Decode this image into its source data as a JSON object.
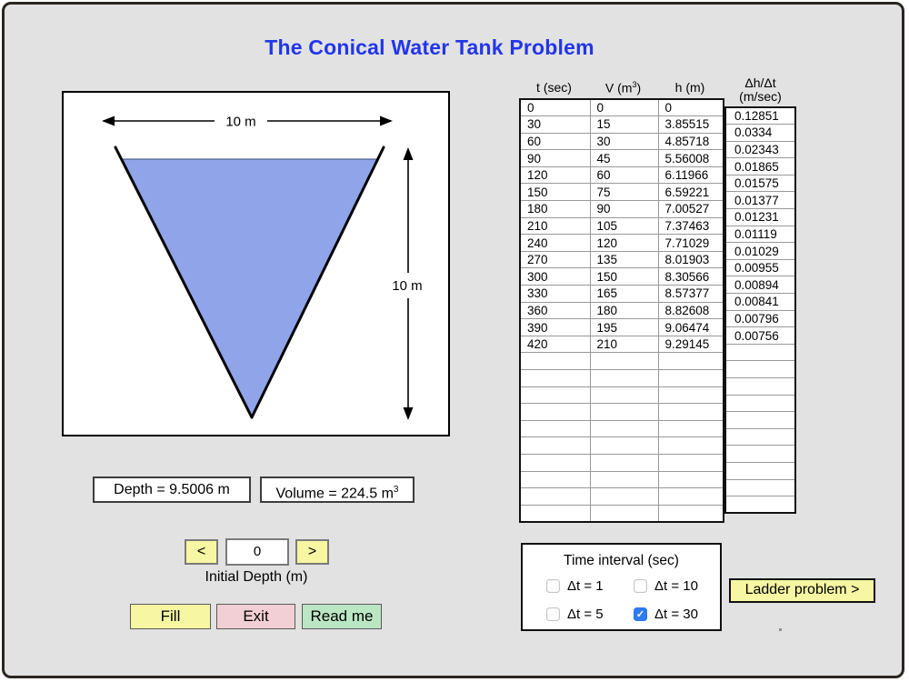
{
  "window": {
    "title": "The Conical Water Tank Problem"
  },
  "diagram": {
    "width_label": "10 m",
    "height_label": "10 m",
    "water_color": "#90a4e9"
  },
  "readouts": {
    "depth": "Depth = 9.5006 m",
    "volume_prefix": "Volume = 224.5 m",
    "volume_sup": "3"
  },
  "stepper": {
    "decrement_label": "<",
    "value": "0",
    "increment_label": ">",
    "label": "Initial Depth (m)"
  },
  "buttons": {
    "fill": "Fill",
    "exit": "Exit",
    "read_me": "Read me",
    "ladder": "Ladder problem >"
  },
  "time_interval": {
    "title": "Time interval (sec)",
    "options": [
      {
        "label": "Δt = 1",
        "checked": false
      },
      {
        "label": "Δt = 10",
        "checked": false
      },
      {
        "label": "Δt = 5",
        "checked": false
      },
      {
        "label": "Δt = 30",
        "checked": true
      }
    ]
  },
  "table": {
    "headers": {
      "t": "t (sec)",
      "v_prefix": "V (m",
      "v_sup": "3",
      "v_suffix": ")",
      "h": "h (m)",
      "rate_line1": "Δh/Δt",
      "rate_line2": "(m/sec)"
    },
    "rows": [
      {
        "t": "0",
        "v": "0",
        "h": "0"
      },
      {
        "t": "30",
        "v": "15",
        "h": "3.85515"
      },
      {
        "t": "60",
        "v": "30",
        "h": "4.85718"
      },
      {
        "t": "90",
        "v": "45",
        "h": "5.56008"
      },
      {
        "t": "120",
        "v": "60",
        "h": "6.11966"
      },
      {
        "t": "150",
        "v": "75",
        "h": "6.59221"
      },
      {
        "t": "180",
        "v": "90",
        "h": "7.00527"
      },
      {
        "t": "210",
        "v": "105",
        "h": "7.37463"
      },
      {
        "t": "240",
        "v": "120",
        "h": "7.71029"
      },
      {
        "t": "270",
        "v": "135",
        "h": "8.01903"
      },
      {
        "t": "300",
        "v": "150",
        "h": "8.30566"
      },
      {
        "t": "330",
        "v": "165",
        "h": "8.57377"
      },
      {
        "t": "360",
        "v": "180",
        "h": "8.82608"
      },
      {
        "t": "390",
        "v": "195",
        "h": "9.06474"
      },
      {
        "t": "420",
        "v": "210",
        "h": "9.29145"
      }
    ],
    "empty_rows": 10,
    "rates": [
      "0.12851",
      "0.0334",
      "0.02343",
      "0.01865",
      "0.01575",
      "0.01377",
      "0.01231",
      "0.01119",
      "0.01029",
      "0.00955",
      "0.00894",
      "0.00841",
      "0.00796",
      "0.00756"
    ],
    "rate_empty_rows": 10
  },
  "colors": {
    "title_blue": "#2236e8",
    "water_blue": "#90a4e9",
    "button_yellow": "#f6f6a3",
    "button_pink": "#f2cfd4",
    "button_green": "#bbe6c3",
    "checkbox_blue": "#2d7cf0",
    "window_gray": "#e2e2e2"
  }
}
